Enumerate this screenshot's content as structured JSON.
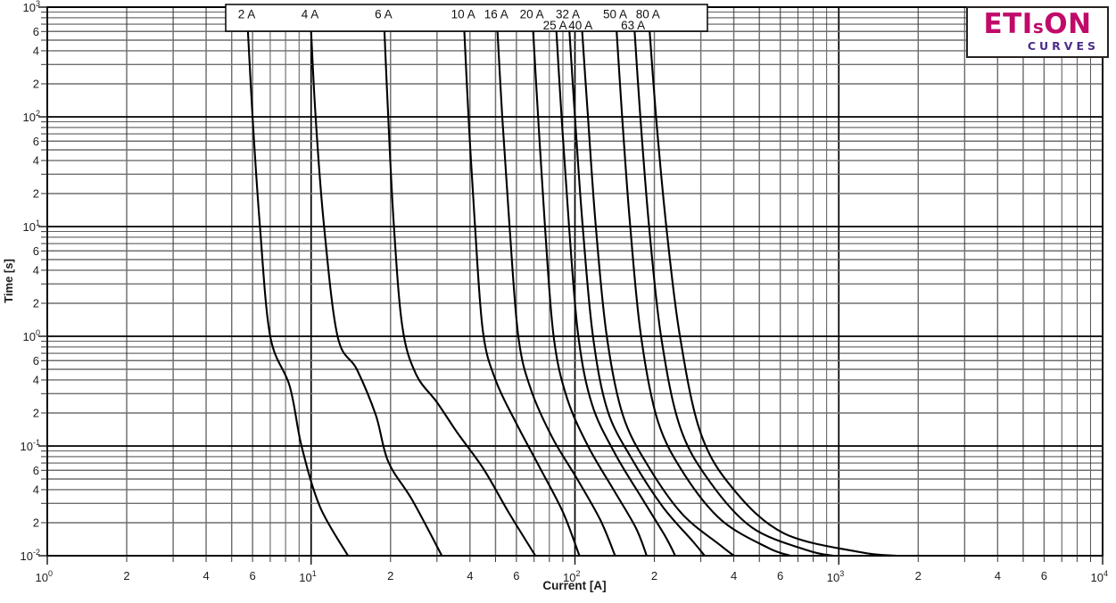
{
  "chart_data": {
    "type": "line",
    "title": "",
    "xlabel": "Current [A]",
    "ylabel": "Time [s]",
    "x_log": true,
    "y_log": true,
    "xlim": [
      1,
      10000
    ],
    "ylim": [
      0.01,
      1000
    ],
    "grid": "full log-log minor grid",
    "labeled_minor_ticks": [
      2,
      4,
      6
    ],
    "curve_color": "#000000",
    "legend_position": "top-box",
    "series": [
      {
        "name": "2 A",
        "label_row": 1,
        "points": [
          [
            5.7,
            1000
          ],
          [
            6.0,
            100
          ],
          [
            6.4,
            10
          ],
          [
            7.0,
            1
          ],
          [
            8.3,
            0.35
          ],
          [
            9.2,
            0.1
          ],
          [
            10.8,
            0.028
          ],
          [
            13.8,
            0.01
          ]
        ]
      },
      {
        "name": "4 A",
        "label_row": 1,
        "points": [
          [
            9.9,
            1000
          ],
          [
            10.4,
            100
          ],
          [
            11.2,
            10
          ],
          [
            12.6,
            1
          ],
          [
            14.9,
            0.5
          ],
          [
            17.6,
            0.19
          ],
          [
            19.6,
            0.072
          ],
          [
            24.2,
            0.032
          ],
          [
            31.3,
            0.01
          ]
        ]
      },
      {
        "name": "6 A",
        "label_row": 1,
        "points": [
          [
            18.8,
            1000
          ],
          [
            19.6,
            100
          ],
          [
            20.6,
            10
          ],
          [
            22.2,
            1.2
          ],
          [
            25,
            0.45
          ],
          [
            30,
            0.25
          ],
          [
            36,
            0.13
          ],
          [
            45,
            0.062
          ],
          [
            56,
            0.025
          ],
          [
            70.8,
            0.01
          ]
        ]
      },
      {
        "name": "10 A",
        "label_row": 1,
        "points": [
          [
            37.7,
            1000
          ],
          [
            39.5,
            100
          ],
          [
            41.8,
            10
          ],
          [
            44.8,
            1.1
          ],
          [
            50,
            0.4
          ],
          [
            60,
            0.16
          ],
          [
            74,
            0.062
          ],
          [
            90,
            0.025
          ],
          [
            104,
            0.01
          ]
        ]
      },
      {
        "name": "16 A",
        "label_row": 1,
        "points": [
          [
            50.3,
            1000
          ],
          [
            53,
            100
          ],
          [
            56.5,
            10
          ],
          [
            61,
            1
          ],
          [
            68,
            0.33
          ],
          [
            82,
            0.12
          ],
          [
            102,
            0.05
          ],
          [
            125,
            0.021
          ],
          [
            142,
            0.01
          ]
        ]
      },
      {
        "name": "20 A",
        "label_row": 1,
        "points": [
          [
            68.6,
            1000
          ],
          [
            72.5,
            100
          ],
          [
            77,
            10
          ],
          [
            83,
            1
          ],
          [
            93,
            0.28
          ],
          [
            112,
            0.1
          ],
          [
            140,
            0.04
          ],
          [
            170,
            0.018
          ],
          [
            187,
            0.01
          ]
        ]
      },
      {
        "name": "25 A",
        "label_row": 2,
        "points": [
          [
            84,
            1000
          ],
          [
            89,
            100
          ],
          [
            95,
            10
          ],
          [
            103,
            1
          ],
          [
            116,
            0.24
          ],
          [
            142,
            0.085
          ],
          [
            180,
            0.033
          ],
          [
            220,
            0.015
          ],
          [
            240,
            0.01
          ]
        ]
      },
      {
        "name": "32 A",
        "label_row": 1,
        "points": [
          [
            94,
            1000
          ],
          [
            100,
            100
          ],
          [
            107,
            10
          ],
          [
            117,
            1
          ],
          [
            133,
            0.21
          ],
          [
            165,
            0.075
          ],
          [
            215,
            0.028
          ],
          [
            280,
            0.0135
          ],
          [
            310,
            0.01
          ]
        ]
      },
      {
        "name": "40 A",
        "label_row": 2,
        "points": [
          [
            105,
            1000
          ],
          [
            112,
            100
          ],
          [
            120,
            10
          ],
          [
            132,
            1
          ],
          [
            152,
            0.19
          ],
          [
            190,
            0.065
          ],
          [
            255,
            0.024
          ],
          [
            355,
            0.0125
          ],
          [
            400,
            0.01
          ]
        ]
      },
      {
        "name": "50 A",
        "label_row": 1,
        "points": [
          [
            142,
            1000
          ],
          [
            151,
            100
          ],
          [
            162,
            10
          ],
          [
            178,
            1
          ],
          [
            206,
            0.17
          ],
          [
            260,
            0.055
          ],
          [
            360,
            0.021
          ],
          [
            540,
            0.0118
          ],
          [
            655,
            0.01
          ]
        ]
      },
      {
        "name": "63 A",
        "label_row": 2,
        "points": [
          [
            166,
            1000
          ],
          [
            177,
            100
          ],
          [
            191,
            10
          ],
          [
            212,
            1
          ],
          [
            250,
            0.15
          ],
          [
            325,
            0.047
          ],
          [
            470,
            0.018
          ],
          [
            760,
            0.0112
          ],
          [
            950,
            0.01
          ]
        ]
      },
      {
        "name": "80 A",
        "label_row": 1,
        "points": [
          [
            189,
            1000
          ],
          [
            203,
            100
          ],
          [
            222,
            10
          ],
          [
            250,
            1
          ],
          [
            300,
            0.13
          ],
          [
            400,
            0.04
          ],
          [
            620,
            0.016
          ],
          [
            1200,
            0.0108
          ],
          [
            1660,
            0.01
          ]
        ]
      }
    ]
  },
  "logo": {
    "brand_left": "ETI",
    "brand_small": "s",
    "brand_right": "ON",
    "subtitle": "CURVES",
    "brand_color": "#c00a6a",
    "subtitle_color": "#4b2e87"
  }
}
